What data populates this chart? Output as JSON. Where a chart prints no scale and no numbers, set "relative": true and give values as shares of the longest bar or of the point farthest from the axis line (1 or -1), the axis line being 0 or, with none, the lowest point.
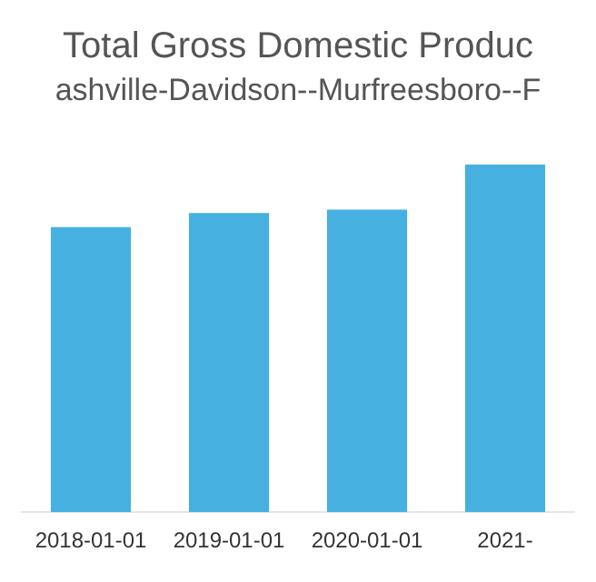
{
  "chart_data": {
    "type": "bar",
    "title": "Total Gross Domestic Produc",
    "subtitle": "ashville-Davidson--Murfreesboro--F",
    "categories": [
      "2018-01-01",
      "2019-01-01",
      "2020-01-01",
      "2021-"
    ],
    "values": [
      0.82,
      0.86,
      0.87,
      1
    ],
    "color": "#46b0e0",
    "relative": true,
    "grid": false,
    "legend": false
  }
}
